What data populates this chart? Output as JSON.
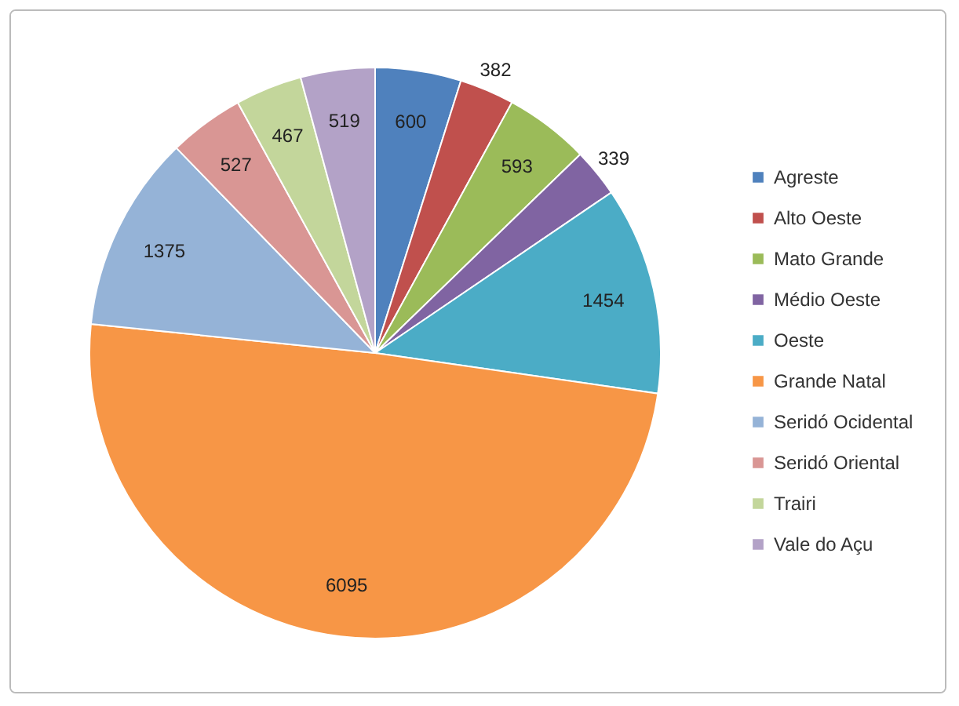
{
  "chart_data": {
    "type": "pie",
    "categories": [
      "Agreste",
      "Alto Oeste",
      "Mato Grande",
      "Médio Oeste",
      "Oeste",
      "Grande Natal",
      "Seridó Ocidental",
      "Seridó Oriental",
      "Trairi",
      "Vale do Açu"
    ],
    "values": [
      600,
      382,
      593,
      339,
      1454,
      6095,
      1375,
      527,
      467,
      519
    ],
    "colors": [
      "#4f81bd",
      "#c0504d",
      "#9bbb59",
      "#8064a2",
      "#4bacc6",
      "#f79646",
      "#95b3d7",
      "#d99694",
      "#c3d69b",
      "#b3a2c7"
    ],
    "data_labels": true,
    "legend": "right"
  }
}
